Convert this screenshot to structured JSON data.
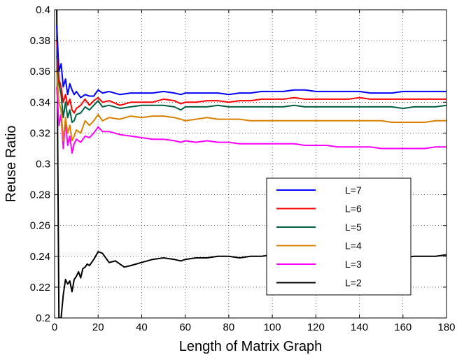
{
  "chart_data": {
    "type": "line",
    "title": "",
    "xlabel": "Length of Matrix Graph",
    "ylabel": "Reuse Ratio",
    "xlim": [
      0,
      180
    ],
    "ylim": [
      0.2,
      0.4
    ],
    "xticks": [
      0,
      20,
      40,
      60,
      80,
      100,
      120,
      140,
      160,
      180
    ],
    "yticks": [
      0.2,
      0.22,
      0.24,
      0.26,
      0.28,
      0.3,
      0.32,
      0.34,
      0.36,
      0.38,
      0.4
    ],
    "grid": true,
    "legend_position": "right",
    "colors": {
      "L=7": "#0000ff",
      "L=6": "#ff0000",
      "L=5": "#006040",
      "L=4": "#d98000",
      "L=3": "#ff00ff",
      "L=2": "#000000"
    },
    "series": [
      {
        "name": "L=7",
        "x": [
          1,
          2,
          3,
          4,
          5,
          6,
          7,
          8,
          9,
          10,
          12,
          14,
          16,
          18,
          20,
          22,
          25,
          30,
          35,
          40,
          45,
          50,
          55,
          58,
          60,
          65,
          70,
          75,
          80,
          85,
          90,
          95,
          100,
          105,
          110,
          115,
          120,
          125,
          130,
          135,
          140,
          145,
          150,
          155,
          160,
          165,
          170,
          175,
          180
        ],
        "y": [
          0.39,
          0.36,
          0.365,
          0.35,
          0.355,
          0.345,
          0.352,
          0.348,
          0.345,
          0.347,
          0.343,
          0.345,
          0.344,
          0.344,
          0.348,
          0.346,
          0.347,
          0.345,
          0.346,
          0.346,
          0.346,
          0.347,
          0.346,
          0.345,
          0.346,
          0.346,
          0.346,
          0.346,
          0.345,
          0.346,
          0.346,
          0.347,
          0.347,
          0.347,
          0.348,
          0.348,
          0.347,
          0.347,
          0.347,
          0.347,
          0.347,
          0.346,
          0.346,
          0.346,
          0.347,
          0.347,
          0.347,
          0.347,
          0.347
        ]
      },
      {
        "name": "L=6",
        "x": [
          1,
          2,
          3,
          4,
          5,
          6,
          7,
          8,
          9,
          10,
          12,
          14,
          16,
          18,
          20,
          22,
          25,
          30,
          35,
          40,
          45,
          50,
          55,
          58,
          60,
          65,
          70,
          75,
          80,
          85,
          90,
          95,
          100,
          105,
          110,
          115,
          120,
          125,
          130,
          135,
          140,
          145,
          150,
          155,
          160,
          165,
          170,
          175,
          180
        ],
        "y": [
          0.38,
          0.355,
          0.35,
          0.34,
          0.345,
          0.338,
          0.342,
          0.335,
          0.333,
          0.336,
          0.338,
          0.342,
          0.338,
          0.341,
          0.343,
          0.34,
          0.341,
          0.338,
          0.34,
          0.34,
          0.34,
          0.342,
          0.341,
          0.339,
          0.34,
          0.34,
          0.341,
          0.341,
          0.34,
          0.341,
          0.341,
          0.342,
          0.342,
          0.342,
          0.343,
          0.342,
          0.342,
          0.342,
          0.342,
          0.342,
          0.343,
          0.342,
          0.342,
          0.342,
          0.342,
          0.342,
          0.342,
          0.342,
          0.342
        ]
      },
      {
        "name": "L=5",
        "x": [
          1,
          2,
          3,
          4,
          5,
          6,
          7,
          8,
          9,
          10,
          12,
          14,
          16,
          18,
          20,
          22,
          25,
          30,
          35,
          40,
          45,
          50,
          55,
          58,
          60,
          65,
          70,
          75,
          80,
          85,
          90,
          95,
          100,
          105,
          110,
          115,
          120,
          125,
          130,
          135,
          140,
          145,
          150,
          155,
          160,
          165,
          170,
          175,
          180
        ],
        "y": [
          0.37,
          0.352,
          0.345,
          0.33,
          0.34,
          0.33,
          0.335,
          0.327,
          0.328,
          0.332,
          0.333,
          0.337,
          0.335,
          0.338,
          0.341,
          0.337,
          0.338,
          0.336,
          0.337,
          0.338,
          0.338,
          0.338,
          0.337,
          0.335,
          0.337,
          0.337,
          0.337,
          0.338,
          0.337,
          0.337,
          0.337,
          0.337,
          0.337,
          0.337,
          0.338,
          0.337,
          0.337,
          0.337,
          0.337,
          0.337,
          0.337,
          0.337,
          0.337,
          0.337,
          0.336,
          0.337,
          0.337,
          0.337,
          0.338
        ]
      },
      {
        "name": "L=4",
        "x": [
          1,
          2,
          3,
          4,
          5,
          6,
          7,
          8,
          9,
          10,
          12,
          14,
          16,
          18,
          20,
          22,
          25,
          30,
          35,
          40,
          45,
          50,
          55,
          58,
          60,
          65,
          70,
          75,
          80,
          85,
          90,
          95,
          100,
          105,
          110,
          115,
          120,
          125,
          130,
          135,
          140,
          145,
          150,
          155,
          160,
          165,
          170,
          175,
          180
        ],
        "y": [
          0.36,
          0.34,
          0.335,
          0.315,
          0.33,
          0.32,
          0.325,
          0.315,
          0.318,
          0.322,
          0.32,
          0.328,
          0.325,
          0.328,
          0.332,
          0.328,
          0.33,
          0.329,
          0.331,
          0.33,
          0.331,
          0.331,
          0.33,
          0.329,
          0.328,
          0.329,
          0.33,
          0.329,
          0.329,
          0.329,
          0.328,
          0.328,
          0.328,
          0.328,
          0.328,
          0.328,
          0.328,
          0.328,
          0.328,
          0.328,
          0.328,
          0.328,
          0.328,
          0.327,
          0.327,
          0.327,
          0.327,
          0.328,
          0.328
        ]
      },
      {
        "name": "L=3",
        "x": [
          1,
          2,
          3,
          4,
          5,
          6,
          7,
          8,
          9,
          10,
          12,
          14,
          16,
          18,
          20,
          22,
          25,
          30,
          35,
          40,
          45,
          50,
          55,
          58,
          60,
          65,
          70,
          75,
          80,
          85,
          90,
          95,
          100,
          105,
          110,
          115,
          120,
          125,
          130,
          135,
          140,
          145,
          150,
          155,
          160,
          165,
          170,
          175,
          180
        ],
        "y": [
          0.35,
          0.325,
          0.332,
          0.31,
          0.328,
          0.312,
          0.318,
          0.307,
          0.313,
          0.316,
          0.314,
          0.318,
          0.317,
          0.32,
          0.324,
          0.321,
          0.321,
          0.319,
          0.318,
          0.317,
          0.316,
          0.316,
          0.315,
          0.314,
          0.315,
          0.314,
          0.315,
          0.314,
          0.314,
          0.313,
          0.313,
          0.313,
          0.313,
          0.313,
          0.313,
          0.312,
          0.312,
          0.312,
          0.311,
          0.311,
          0.311,
          0.311,
          0.31,
          0.31,
          0.31,
          0.31,
          0.31,
          0.311,
          0.311
        ]
      },
      {
        "name": "L=2",
        "x": [
          1,
          2,
          3,
          4,
          5,
          6,
          7,
          8,
          9,
          10,
          11,
          12,
          13,
          14,
          15,
          16,
          18,
          20,
          22,
          25,
          28,
          30,
          32,
          35,
          40,
          45,
          50,
          55,
          58,
          60,
          65,
          70,
          75,
          80,
          85,
          90,
          95,
          100,
          105,
          110,
          115,
          120,
          125,
          130,
          135,
          140,
          145,
          150,
          155,
          160,
          165,
          170,
          175,
          180
        ],
        "y": [
          0.4,
          0.2,
          0.2,
          0.215,
          0.225,
          0.222,
          0.224,
          0.217,
          0.225,
          0.227,
          0.23,
          0.226,
          0.232,
          0.233,
          0.235,
          0.234,
          0.238,
          0.243,
          0.242,
          0.236,
          0.237,
          0.235,
          0.233,
          0.234,
          0.236,
          0.238,
          0.239,
          0.238,
          0.237,
          0.238,
          0.239,
          0.239,
          0.24,
          0.24,
          0.239,
          0.24,
          0.24,
          0.241,
          0.24,
          0.24,
          0.24,
          0.241,
          0.24,
          0.24,
          0.24,
          0.24,
          0.24,
          0.24,
          0.24,
          0.239,
          0.24,
          0.24,
          0.24,
          0.241
        ]
      }
    ]
  }
}
